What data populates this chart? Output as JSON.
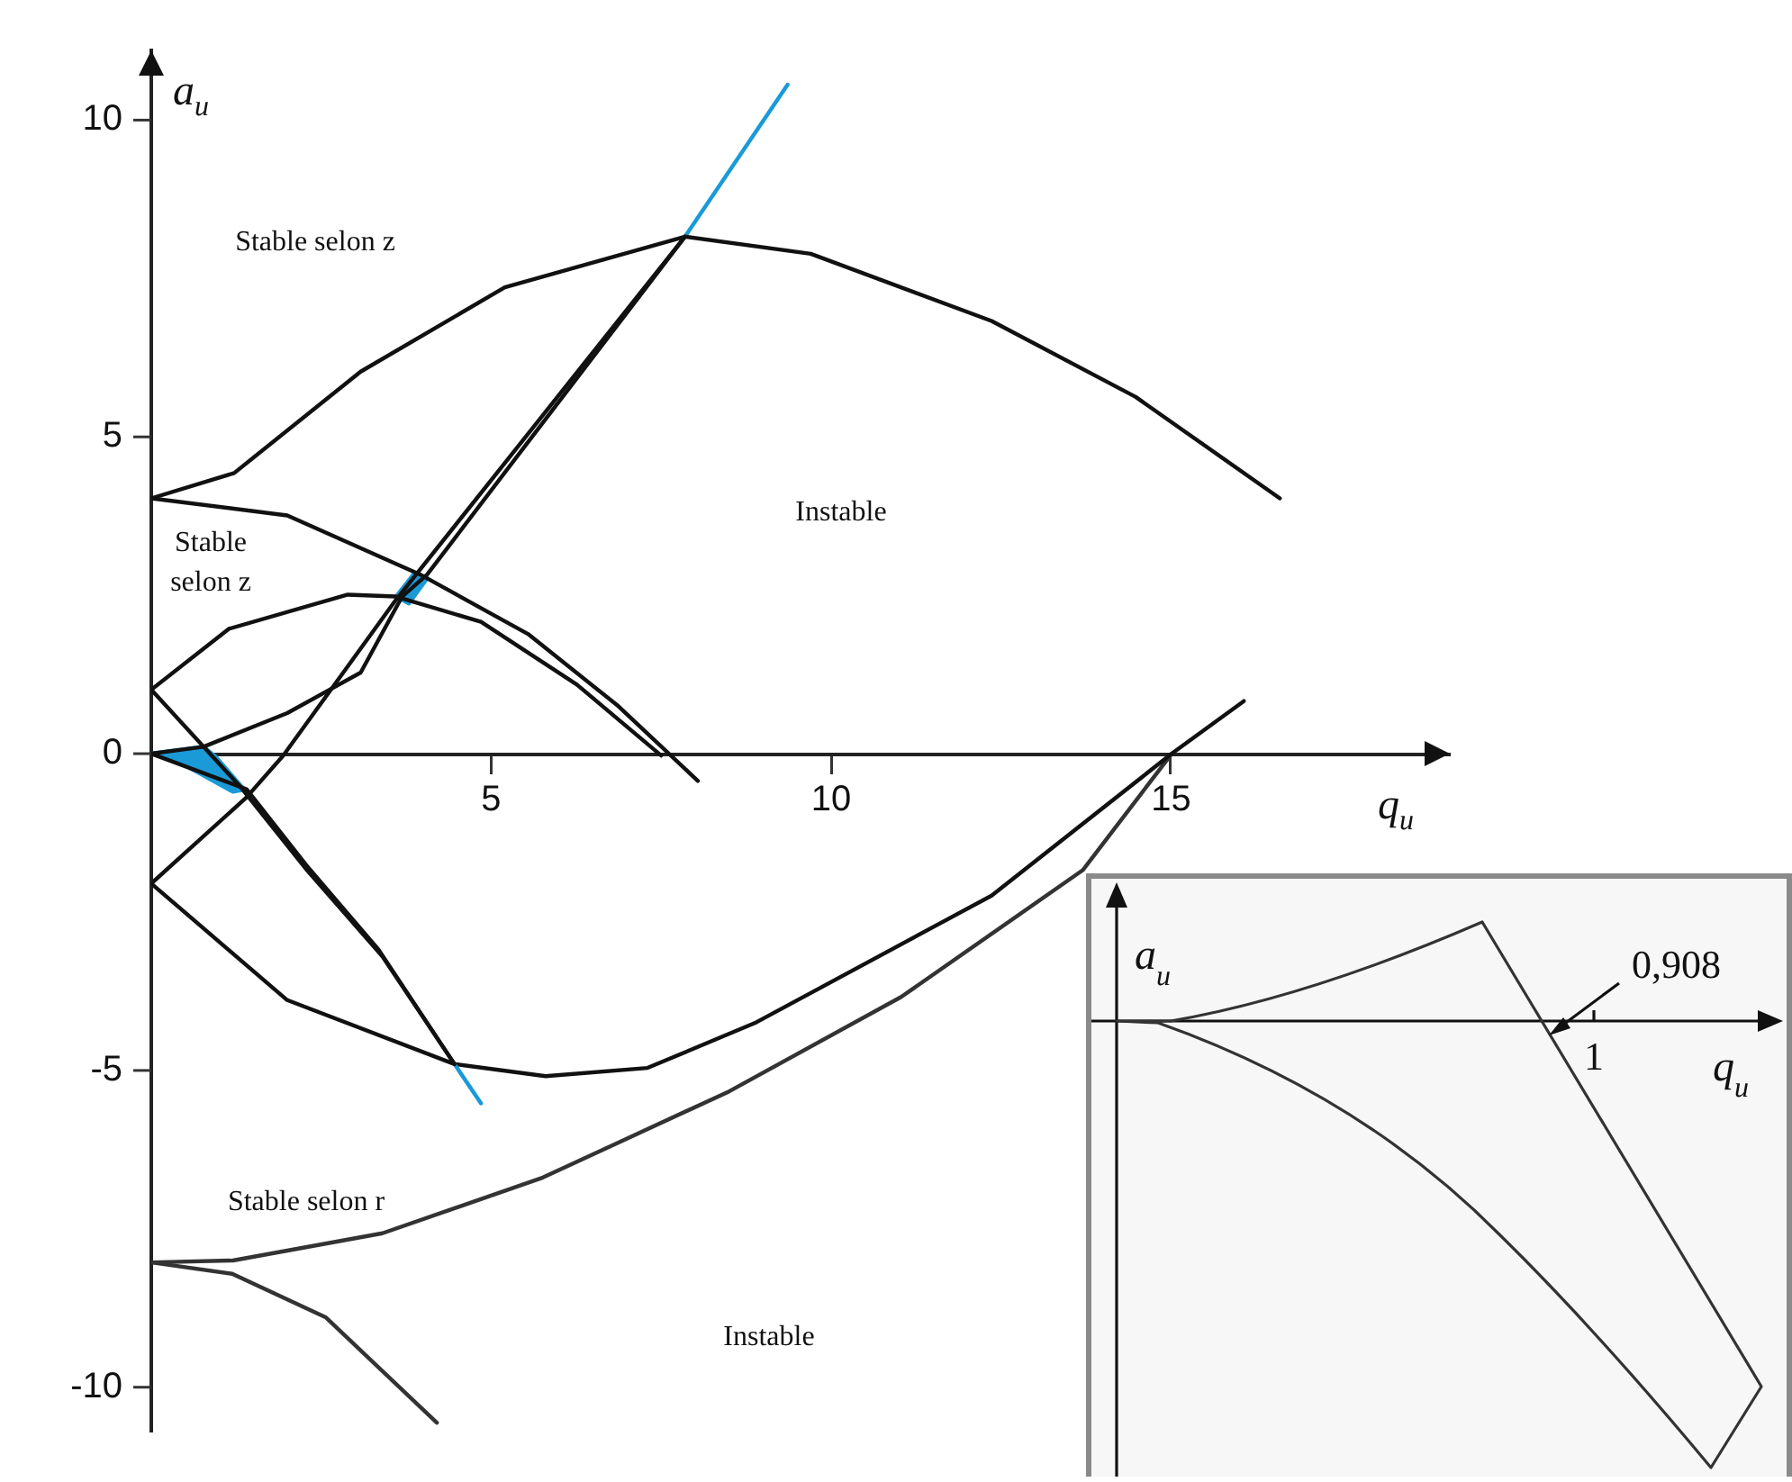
{
  "chart_data": [
    {
      "type": "line",
      "xlabel": "q$_{u}$",
      "ylabel": "a$_{u}$",
      "xlim": [
        0,
        19.1
      ],
      "ylim": [
        -10.7,
        11.1
      ],
      "xticks": [
        5,
        10,
        15
      ],
      "yticks": [
        -10,
        -5,
        0,
        5,
        10
      ],
      "grid": false,
      "legend": false,
      "marker": "none",
      "line_style": "solid",
      "series": [
        {
          "color": "#111111",
          "x": [
            0,
            1.22,
            3.08,
            5.2,
            7.85,
            9.7,
            12.36,
            14.48,
            16.6
          ],
          "values": [
            4.03,
            4.43,
            6.03,
            7.36,
            8.16,
            7.89,
            6.83,
            5.63,
            4.03
          ]
        },
        {
          "color": "#111111",
          "x": [
            0,
            2.0,
            3.95,
            5.54,
            6.87,
            8.04
          ],
          "values": [
            4.03,
            3.76,
            2.83,
            1.89,
            0.75,
            -0.43
          ]
        },
        {
          "color": "#111111",
          "x": [
            0,
            1.14,
            2.89,
            3.6,
            4.85,
            6.26,
            7.5
          ],
          "values": [
            1.01,
            1.97,
            2.51,
            2.48,
            2.08,
            1.09,
            -0.03
          ]
        },
        {
          "color": "#111111",
          "x": [
            0,
            1.3,
            2.3,
            3.4,
            4.46
          ],
          "values": [
            1.01,
            -0.51,
            -1.85,
            -3.2,
            -4.9
          ]
        },
        {
          "color": "#111111",
          "x": [
            0,
            1.4,
            2.28,
            3.34,
            4.46
          ],
          "values": [
            0,
            -0.56,
            -1.76,
            -3.09,
            -4.9
          ]
        },
        {
          "color": "#111111",
          "x": [
            0,
            0.77,
            2.0,
            3.08,
            3.69,
            4.06,
            5.5,
            7.85
          ],
          "values": [
            0,
            0.11,
            0.64,
            1.28,
            2.48,
            2.83,
            4.86,
            8.16
          ]
        },
        {
          "color": "#111111",
          "x": [
            0,
            1.4,
            1.94,
            3.6,
            7.85
          ],
          "values": [
            -2.05,
            -0.69,
            -0.03,
            2.43,
            8.16
          ]
        },
        {
          "color": "#1a9ad7",
          "x": [
            7.85,
            9.36
          ],
          "values": [
            8.16,
            10.56
          ]
        },
        {
          "color": "#1a9ad7",
          "x": [
            4.46,
            4.85
          ],
          "values": [
            -4.9,
            -5.52
          ]
        },
        {
          "color": "#111111",
          "x": [
            0,
            2.0,
            4.46,
            5.8,
            7.3,
            8.9,
            12.36,
            15.01,
            16.07
          ],
          "values": [
            -2.05,
            -3.89,
            -4.9,
            -5.09,
            -4.96,
            -4.24,
            -2.24,
            0,
            0.83
          ]
        },
        {
          "color": "#333333",
          "x": [
            0,
            1.2,
            3.4,
            5.76,
            8.5,
            11.03,
            13.7,
            15.01
          ],
          "values": [
            -8.03,
            -8.0,
            -7.57,
            -6.69,
            -5.33,
            -3.84,
            -1.84,
            0
          ]
        },
        {
          "color": "#333333",
          "x": [
            0,
            1.19,
            2.57,
            4.2
          ],
          "values": [
            -8.03,
            -8.21,
            -8.9,
            -10.56
          ]
        },
        {
          "type": "area",
          "color": "#1a9ad7",
          "x": [
            0,
            0.77,
            0.95,
            1.37,
            1.2,
            0.69,
            0.3,
            0
          ],
          "values": [
            0,
            0.11,
            -0.05,
            -0.57,
            -0.6,
            -0.3,
            -0.07,
            0
          ]
        },
        {
          "type": "area",
          "color": "#1a9ad7",
          "x": [
            3.6,
            3.87,
            4.06,
            3.79,
            3.6
          ],
          "values": [
            2.48,
            2.85,
            2.77,
            2.37,
            2.48
          ]
        }
      ],
      "annotations": [
        "Stable selon z",
        "Stable\nselon z",
        "Instable",
        "Stable selon r",
        "Instable"
      ]
    },
    {
      "type": "other",
      "xlabel": "q$_{u}$",
      "ylabel": "a$_{u}$",
      "annotations": [
        "0,908",
        "1"
      ]
    }
  ]
}
